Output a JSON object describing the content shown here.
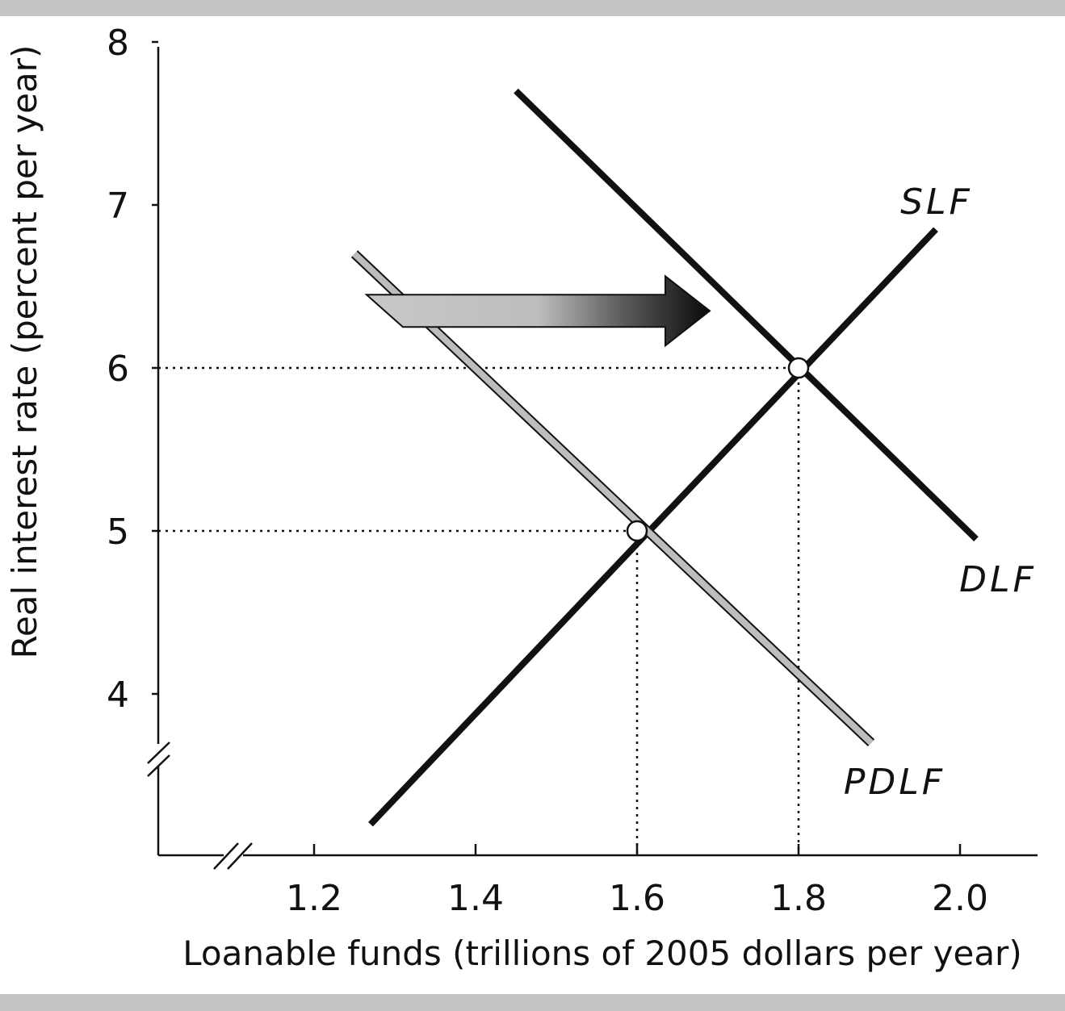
{
  "chart_data": {
    "type": "line",
    "title": "",
    "xlabel": "Loanable funds (trillions of 2005 dollars per year)",
    "ylabel": "Real interest rate (percent per year)",
    "xlim": [
      1.0,
      2.1
    ],
    "ylim": [
      3.0,
      8.0
    ],
    "x_ticks": [
      {
        "value": 1.2,
        "label": "1.2"
      },
      {
        "value": 1.4,
        "label": "1.4"
      },
      {
        "value": 1.6,
        "label": "1.6"
      },
      {
        "value": 1.8,
        "label": "1.8"
      },
      {
        "value": 2.0,
        "label": "2.0"
      }
    ],
    "y_ticks": [
      {
        "value": 4,
        "label": "4"
      },
      {
        "value": 5,
        "label": "5"
      },
      {
        "value": 6,
        "label": "6"
      },
      {
        "value": 7,
        "label": "7"
      },
      {
        "value": 8,
        "label": "8"
      }
    ],
    "axis_breaks": [
      "x",
      "y"
    ],
    "grid": false,
    "series": [
      {
        "name": "SLF",
        "color": "#111111",
        "points": [
          [
            1.27,
            3.2
          ],
          [
            1.97,
            6.85
          ]
        ]
      },
      {
        "name": "DLF",
        "color": "#111111",
        "points": [
          [
            1.45,
            7.7
          ],
          [
            2.02,
            4.95
          ]
        ]
      },
      {
        "name": "PDLF",
        "color": "#bdbdbd",
        "points": [
          [
            1.25,
            6.7
          ],
          [
            1.89,
            3.7
          ]
        ]
      }
    ],
    "equilibria": [
      {
        "x": 1.6,
        "y": 5
      },
      {
        "x": 1.8,
        "y": 6
      }
    ],
    "shift_arrow": {
      "from": "PDLF",
      "to": "DLF",
      "y": 6.35,
      "x_start": 1.31,
      "x_end": 1.69
    }
  }
}
